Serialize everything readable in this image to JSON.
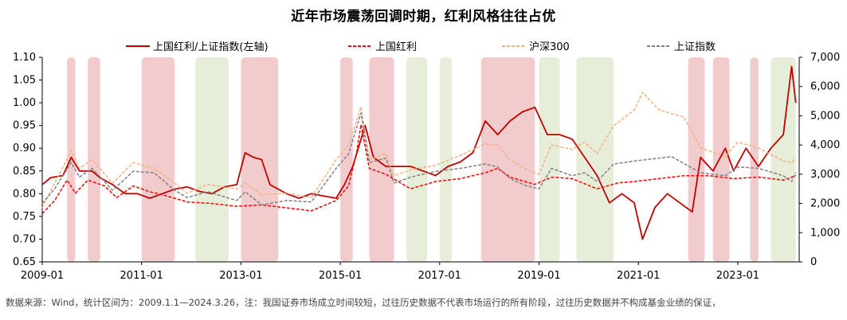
{
  "title": "近年市场震荡回调时期，红利风格往往占优",
  "footnote": "数据来源：Wind，统计区间为：2009.1.1—2024.3.26，注：我国证券市场成立时间较短，过往历史数据不代表市场运行的所有阶段，过往历史数据并不构成基金业绩的保证，",
  "chart_data": {
    "type": "line",
    "legend_position": "top",
    "x_range": [
      "2009-01-01",
      "2024-03-26"
    ],
    "x_ticks": [
      "2009-01",
      "2011-01",
      "2013-01",
      "2015-01",
      "2017-01",
      "2019-01",
      "2021-01",
      "2023-01"
    ],
    "y_left": {
      "min": 0.65,
      "max": 1.1,
      "ticks": [
        "1.10",
        "1.05",
        "1.00",
        "0.95",
        "0.90",
        "0.85",
        "0.80",
        "0.75",
        "0.70",
        "0.65"
      ]
    },
    "y_right": {
      "min": 0,
      "max": 7000,
      "ticks": [
        "7,000",
        "6,000",
        "5,000",
        "4,000",
        "3,000",
        "2,000",
        "1,000",
        "0"
      ]
    },
    "colors": {
      "red_band": "#f2cccc",
      "green_band": "#e6eed9",
      "ratio": "#c00000",
      "dividend": "#ff0000",
      "csi300": "#f4b183",
      "sse": "#808080"
    },
    "bands": [
      {
        "start": "2009-07",
        "end": "2009-09",
        "color": "red"
      },
      {
        "start": "2009-12",
        "end": "2010-03",
        "color": "red"
      },
      {
        "start": "2011-01",
        "end": "2011-09",
        "color": "red"
      },
      {
        "start": "2012-02",
        "end": "2012-10",
        "color": "green"
      },
      {
        "start": "2013-01",
        "end": "2013-10",
        "color": "red"
      },
      {
        "start": "2015-01",
        "end": "2015-04",
        "color": "red"
      },
      {
        "start": "2015-08",
        "end": "2016-02",
        "color": "red"
      },
      {
        "start": "2016-05",
        "end": "2016-10",
        "color": "green"
      },
      {
        "start": "2017-01",
        "end": "2017-04",
        "color": "green"
      },
      {
        "start": "2017-11",
        "end": "2018-12",
        "color": "red"
      },
      {
        "start": "2019-01",
        "end": "2019-06",
        "color": "green"
      },
      {
        "start": "2019-10",
        "end": "2020-07",
        "color": "green"
      },
      {
        "start": "2022-01",
        "end": "2022-05",
        "color": "red"
      },
      {
        "start": "2022-07",
        "end": "2022-11",
        "color": "red"
      },
      {
        "start": "2023-04",
        "end": "2023-06",
        "color": "red"
      },
      {
        "start": "2023-09",
        "end": "2024-03",
        "color": "green"
      }
    ],
    "series": [
      {
        "name": "上国红利/上证指数(左轴)",
        "axis": "left",
        "style": "solid",
        "color": "#c00000",
        "points": [
          [
            "2009-01",
            0.82
          ],
          [
            "2009-03",
            0.835
          ],
          [
            "2009-06",
            0.84
          ],
          [
            "2009-08",
            0.88
          ],
          [
            "2009-10",
            0.85
          ],
          [
            "2010-01",
            0.85
          ],
          [
            "2010-03",
            0.835
          ],
          [
            "2010-06",
            0.82
          ],
          [
            "2010-09",
            0.8
          ],
          [
            "2010-12",
            0.8
          ],
          [
            "2011-03",
            0.79
          ],
          [
            "2011-06",
            0.8
          ],
          [
            "2011-09",
            0.81
          ],
          [
            "2011-12",
            0.815
          ],
          [
            "2012-03",
            0.805
          ],
          [
            "2012-06",
            0.8
          ],
          [
            "2012-09",
            0.815
          ],
          [
            "2012-12",
            0.82
          ],
          [
            "2013-02",
            0.89
          ],
          [
            "2013-04",
            0.88
          ],
          [
            "2013-06",
            0.875
          ],
          [
            "2013-08",
            0.82
          ],
          [
            "2013-12",
            0.8
          ],
          [
            "2014-03",
            0.79
          ],
          [
            "2014-06",
            0.8
          ],
          [
            "2014-09",
            0.795
          ],
          [
            "2014-12",
            0.79
          ],
          [
            "2015-02",
            0.82
          ],
          [
            "2015-04",
            0.86
          ],
          [
            "2015-07",
            0.95
          ],
          [
            "2015-09",
            0.88
          ],
          [
            "2015-12",
            0.86
          ],
          [
            "2016-03",
            0.86
          ],
          [
            "2016-06",
            0.86
          ],
          [
            "2016-09",
            0.85
          ],
          [
            "2016-12",
            0.84
          ],
          [
            "2017-03",
            0.86
          ],
          [
            "2017-06",
            0.87
          ],
          [
            "2017-09",
            0.89
          ],
          [
            "2017-12",
            0.96
          ],
          [
            "2018-03",
            0.93
          ],
          [
            "2018-06",
            0.96
          ],
          [
            "2018-09",
            0.98
          ],
          [
            "2018-12",
            0.99
          ],
          [
            "2019-03",
            0.93
          ],
          [
            "2019-06",
            0.93
          ],
          [
            "2019-09",
            0.92
          ],
          [
            "2019-12",
            0.88
          ],
          [
            "2020-03",
            0.84
          ],
          [
            "2020-06",
            0.78
          ],
          [
            "2020-09",
            0.8
          ],
          [
            "2020-12",
            0.78
          ],
          [
            "2021-02",
            0.7
          ],
          [
            "2021-05",
            0.77
          ],
          [
            "2021-08",
            0.8
          ],
          [
            "2021-11",
            0.78
          ],
          [
            "2022-02",
            0.76
          ],
          [
            "2022-04",
            0.88
          ],
          [
            "2022-07",
            0.85
          ],
          [
            "2022-10",
            0.9
          ],
          [
            "2022-12",
            0.85
          ],
          [
            "2023-03",
            0.9
          ],
          [
            "2023-06",
            0.86
          ],
          [
            "2023-09",
            0.9
          ],
          [
            "2023-12",
            0.93
          ],
          [
            "2024-02",
            1.08
          ],
          [
            "2024-03",
            1.0
          ]
        ]
      },
      {
        "name": "上国红利",
        "axis": "right",
        "style": "dashed",
        "color": "#ff0000",
        "points": [
          [
            "2009-01",
            1650
          ],
          [
            "2009-04",
            2100
          ],
          [
            "2009-07",
            2800
          ],
          [
            "2009-09",
            2350
          ],
          [
            "2009-12",
            2800
          ],
          [
            "2010-04",
            2600
          ],
          [
            "2010-07",
            2200
          ],
          [
            "2010-11",
            2600
          ],
          [
            "2011-03",
            2400
          ],
          [
            "2011-06",
            2300
          ],
          [
            "2011-12",
            2050
          ],
          [
            "2012-06",
            2000
          ],
          [
            "2012-12",
            1900
          ],
          [
            "2013-06",
            1950
          ],
          [
            "2013-12",
            1850
          ],
          [
            "2014-06",
            1750
          ],
          [
            "2014-12",
            2100
          ],
          [
            "2015-03",
            2600
          ],
          [
            "2015-05",
            3800
          ],
          [
            "2015-06",
            4700
          ],
          [
            "2015-08",
            3200
          ],
          [
            "2015-12",
            3000
          ],
          [
            "2016-06",
            2500
          ],
          [
            "2016-12",
            2750
          ],
          [
            "2017-06",
            2850
          ],
          [
            "2017-12",
            3050
          ],
          [
            "2018-03",
            3200
          ],
          [
            "2018-06",
            2900
          ],
          [
            "2018-12",
            2650
          ],
          [
            "2019-04",
            2900
          ],
          [
            "2019-09",
            2850
          ],
          [
            "2020-03",
            2500
          ],
          [
            "2020-08",
            2700
          ],
          [
            "2020-12",
            2750
          ],
          [
            "2021-06",
            2850
          ],
          [
            "2021-12",
            2950
          ],
          [
            "2022-06",
            2950
          ],
          [
            "2022-12",
            2850
          ],
          [
            "2023-06",
            2900
          ],
          [
            "2023-12",
            2800
          ],
          [
            "2024-03",
            2950
          ]
        ]
      },
      {
        "name": "沪深300",
        "axis": "right",
        "style": "dashed",
        "color": "#f4b183",
        "points": [
          [
            "2009-01",
            1850
          ],
          [
            "2009-04",
            2700
          ],
          [
            "2009-08",
            3800
          ],
          [
            "2009-10",
            3200
          ],
          [
            "2010-01",
            3500
          ],
          [
            "2010-06",
            2700
          ],
          [
            "2010-11",
            3400
          ],
          [
            "2011-04",
            3200
          ],
          [
            "2011-09",
            2700
          ],
          [
            "2011-12",
            2350
          ],
          [
            "2012-05",
            2650
          ],
          [
            "2012-12",
            2500
          ],
          [
            "2013-02",
            2700
          ],
          [
            "2013-06",
            2300
          ],
          [
            "2013-12",
            2350
          ],
          [
            "2014-06",
            2200
          ],
          [
            "2014-12",
            3500
          ],
          [
            "2015-03",
            4000
          ],
          [
            "2015-06",
            5300
          ],
          [
            "2015-08",
            3500
          ],
          [
            "2015-12",
            3700
          ],
          [
            "2016-02",
            2950
          ],
          [
            "2016-06",
            3150
          ],
          [
            "2016-12",
            3300
          ],
          [
            "2017-06",
            3650
          ],
          [
            "2017-12",
            4030
          ],
          [
            "2018-03",
            4000
          ],
          [
            "2018-06",
            3500
          ],
          [
            "2018-10",
            3150
          ],
          [
            "2019-01",
            3000
          ],
          [
            "2019-04",
            4000
          ],
          [
            "2019-09",
            3850
          ],
          [
            "2019-12",
            4100
          ],
          [
            "2020-03",
            3700
          ],
          [
            "2020-07",
            4650
          ],
          [
            "2020-12",
            5200
          ],
          [
            "2021-02",
            5800
          ],
          [
            "2021-06",
            5200
          ],
          [
            "2021-12",
            4950
          ],
          [
            "2022-04",
            3900
          ],
          [
            "2022-10",
            3600
          ],
          [
            "2023-01",
            4100
          ],
          [
            "2023-06",
            3900
          ],
          [
            "2023-12",
            3450
          ],
          [
            "2024-02",
            3400
          ],
          [
            "2024-03",
            3550
          ]
        ]
      },
      {
        "name": "上证指数",
        "axis": "right",
        "style": "dashed",
        "color": "#808080",
        "points": [
          [
            "2009-01",
            2000
          ],
          [
            "2009-04",
            2500
          ],
          [
            "2009-08",
            3400
          ],
          [
            "2009-10",
            2900
          ],
          [
            "2010-01",
            3200
          ],
          [
            "2010-06",
            2450
          ],
          [
            "2010-11",
            3100
          ],
          [
            "2011-04",
            3050
          ],
          [
            "2011-09",
            2450
          ],
          [
            "2011-12",
            2200
          ],
          [
            "2012-05",
            2400
          ],
          [
            "2012-12",
            2100
          ],
          [
            "2013-02",
            2400
          ],
          [
            "2013-06",
            1950
          ],
          [
            "2013-12",
            2100
          ],
          [
            "2014-06",
            2050
          ],
          [
            "2014-12",
            3200
          ],
          [
            "2015-03",
            3700
          ],
          [
            "2015-06",
            5100
          ],
          [
            "2015-08",
            3400
          ],
          [
            "2015-12",
            3550
          ],
          [
            "2016-02",
            2700
          ],
          [
            "2016-06",
            2900
          ],
          [
            "2016-12",
            3100
          ],
          [
            "2017-06",
            3200
          ],
          [
            "2017-12",
            3350
          ],
          [
            "2018-03",
            3250
          ],
          [
            "2018-06",
            2850
          ],
          [
            "2018-10",
            2600
          ],
          [
            "2019-01",
            2500
          ],
          [
            "2019-04",
            3200
          ],
          [
            "2019-09",
            2950
          ],
          [
            "2019-12",
            3050
          ],
          [
            "2020-03",
            2750
          ],
          [
            "2020-07",
            3350
          ],
          [
            "2020-12",
            3450
          ],
          [
            "2021-03",
            3500
          ],
          [
            "2021-09",
            3600
          ],
          [
            "2022-04",
            3050
          ],
          [
            "2022-10",
            2950
          ],
          [
            "2023-01",
            3250
          ],
          [
            "2023-06",
            3200
          ],
          [
            "2023-12",
            2950
          ],
          [
            "2024-02",
            2750
          ],
          [
            "2024-03",
            3050
          ]
        ]
      }
    ]
  }
}
